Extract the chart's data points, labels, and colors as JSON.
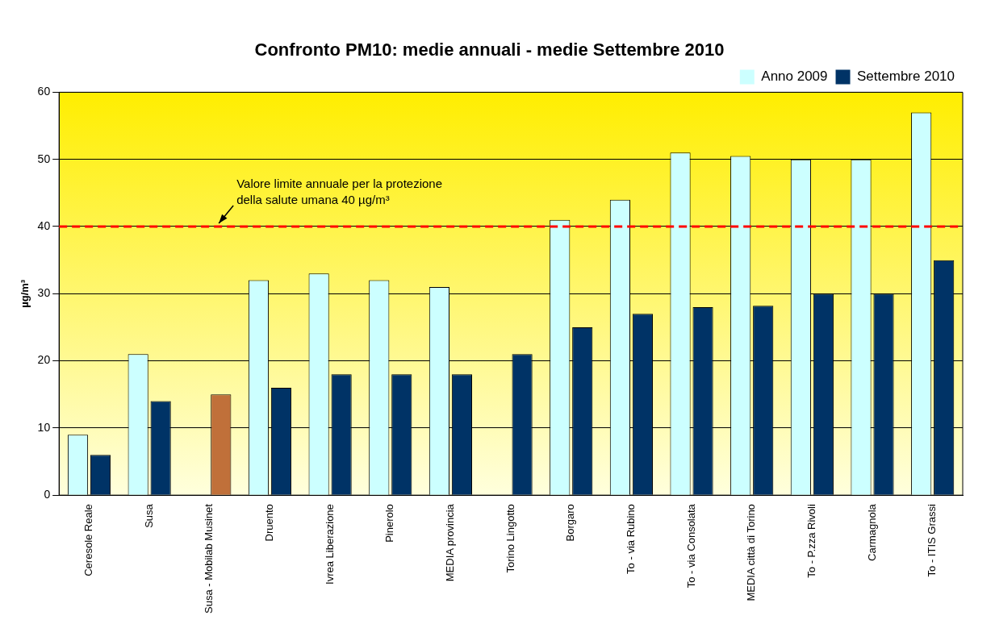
{
  "chart_data": {
    "type": "bar",
    "title": "Confronto PM10: medie annuali - medie Settembre 2010",
    "ylabel": "µg/m³",
    "categories": [
      "Ceresole Reale",
      "Susa",
      "Susa - Mobilab Musinet",
      "Druento",
      "Ivrea Liberazione",
      "Pinerolo",
      "MEDIA provincia",
      "Torino Lingotto",
      "Borgaro",
      "To - via Rubino",
      "To - via Consolata",
      "MEDIA città di Torino",
      "To - P.zza Rivoli",
      "Carmagnola",
      "To - ITIS Grassi"
    ],
    "series": [
      {
        "name": "Anno 2009",
        "color": "#ccffff",
        "values": [
          9,
          21,
          null,
          32,
          33,
          32,
          31,
          null,
          41,
          44,
          51,
          50.5,
          50,
          50,
          57
        ]
      },
      {
        "name": "Settembre 2010",
        "color": "#003366",
        "colors": [
          "#003366",
          "#003366",
          "#c0703a",
          "#003366",
          "#003366",
          "#003366",
          "#003366",
          "#003366",
          "#003366",
          "#003366",
          "#003366",
          "#003366",
          "#003366",
          "#003366",
          "#003366"
        ],
        "values": [
          6,
          14,
          15,
          16,
          18,
          18,
          18,
          21,
          25,
          27,
          28,
          28.2,
          30,
          30,
          35
        ]
      }
    ],
    "ylim": [
      0,
      60
    ],
    "yticks": [
      0,
      10,
      20,
      30,
      40,
      50,
      60
    ],
    "grid": "y",
    "legend": "top right",
    "ref_lines": [
      {
        "axis": "y",
        "value": 40,
        "label": "Valore limite annuale per la protezione\ndella salute umana 40 µg/m³",
        "color": "#ff0000",
        "line_style": "dashed"
      }
    ]
  }
}
